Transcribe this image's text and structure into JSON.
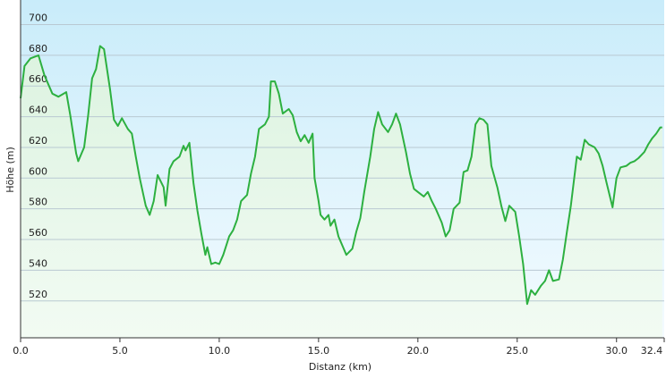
{
  "chart_data": {
    "type": "line",
    "x_label": "Distanz  (km)",
    "y_label": "Höhe (m)",
    "x": [
      0,
      0.2,
      0.5,
      0.9,
      1.2,
      1.6,
      1.9,
      2.3,
      2.5,
      2.8,
      2.9,
      3.2,
      3.4,
      3.6,
      3.8,
      4.0,
      4.2,
      4.5,
      4.7,
      4.9,
      5.1,
      5.4,
      5.6,
      5.8,
      6.0,
      6.3,
      6.5,
      6.7,
      6.9,
      7.2,
      7.3,
      7.5,
      7.7,
      8.0,
      8.2,
      8.3,
      8.5,
      8.7,
      8.9,
      9.1,
      9.3,
      9.4,
      9.6,
      9.8,
      10.0,
      10.2,
      10.5,
      10.7,
      10.9,
      11.1,
      11.4,
      11.6,
      11.8,
      12.0,
      12.3,
      12.5,
      12.6,
      12.8,
      13.0,
      13.2,
      13.5,
      13.7,
      13.9,
      14.1,
      14.3,
      14.5,
      14.7,
      14.8,
      15.0,
      15.1,
      15.3,
      15.5,
      15.6,
      15.8,
      16.0,
      16.2,
      16.4,
      16.7,
      16.9,
      17.1,
      17.3,
      17.6,
      17.8,
      18.0,
      18.2,
      18.5,
      18.7,
      18.9,
      19.1,
      19.4,
      19.6,
      19.8,
      20.0,
      20.3,
      20.5,
      20.7,
      20.9,
      21.2,
      21.4,
      21.6,
      21.8,
      22.1,
      22.3,
      22.5,
      22.7,
      22.9,
      23.1,
      23.3,
      23.5,
      23.7,
      24.0,
      24.2,
      24.4,
      24.6,
      24.9,
      25.1,
      25.3,
      25.5,
      25.7,
      25.9,
      26.2,
      26.4,
      26.6,
      26.8,
      27.1,
      27.3,
      27.5,
      27.7,
      28.0,
      28.2,
      28.4,
      28.6,
      28.9,
      29.1,
      29.3,
      29.5,
      29.8,
      30.0,
      30.2,
      30.5,
      30.7,
      30.9,
      31.1,
      31.4,
      31.6,
      31.8,
      32.0,
      32.2,
      32.3
    ],
    "values": [
      652,
      673,
      678,
      680,
      667,
      655,
      653,
      656,
      641,
      616,
      611,
      620,
      641,
      665,
      671,
      686,
      684,
      658,
      638,
      634,
      639,
      632,
      629,
      614,
      600,
      582,
      576,
      585,
      602,
      594,
      582,
      606,
      611,
      614,
      621,
      618,
      623,
      597,
      579,
      564,
      550,
      555,
      544,
      545,
      544,
      550,
      562,
      566,
      573,
      585,
      589,
      603,
      614,
      632,
      635,
      640,
      663,
      663,
      655,
      642,
      645,
      641,
      630,
      624,
      628,
      623,
      629,
      600,
      585,
      576,
      573,
      576,
      569,
      573,
      562,
      556,
      550,
      554,
      565,
      574,
      591,
      614,
      632,
      643,
      635,
      630,
      635,
      642,
      635,
      617,
      603,
      593,
      591,
      588,
      591,
      585,
      580,
      571,
      562,
      566,
      580,
      584,
      604,
      605,
      614,
      635,
      639,
      638,
      635,
      608,
      594,
      582,
      572,
      582,
      578,
      562,
      544,
      518,
      527,
      524,
      530,
      533,
      540,
      533,
      534,
      547,
      565,
      582,
      614,
      612,
      625,
      622,
      620,
      616,
      608,
      597,
      581,
      600,
      607,
      608,
      610,
      611,
      613,
      617,
      622,
      626,
      629,
      633,
      633
    ],
    "color": "#2db040",
    "xlim": [
      0,
      32.4
    ],
    "ylim": [
      496,
      716
    ],
    "xticks": [
      {
        "value": 0,
        "label": "0.0"
      },
      {
        "value": 5,
        "label": "5.0"
      },
      {
        "value": 10,
        "label": "10.0"
      },
      {
        "value": 15,
        "label": "15.0"
      },
      {
        "value": 20,
        "label": "20.0"
      },
      {
        "value": 25,
        "label": "25.0"
      },
      {
        "value": 30,
        "label": "30.0"
      },
      32.4
    ],
    "yticks": [
      520,
      540,
      560,
      580,
      600,
      620,
      640,
      660,
      680,
      700
    ],
    "grid": true
  }
}
